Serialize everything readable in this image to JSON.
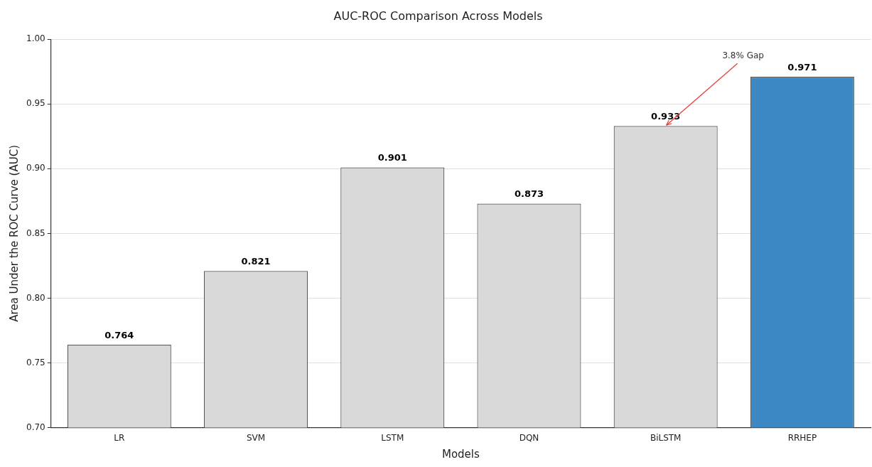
{
  "chart_data": {
    "type": "bar",
    "title": "AUC-ROC Comparison Across Models",
    "xlabel": "Models",
    "ylabel": "Area Under the ROC Curve (AUC)",
    "categories": [
      "LR",
      "SVM",
      "LSTM",
      "DQN",
      "BiLSTM",
      "RRHEP"
    ],
    "values": [
      0.764,
      0.821,
      0.901,
      0.873,
      0.933,
      0.971
    ],
    "colors": [
      "#d9d9d9",
      "#d9d9d9",
      "#d9d9d9",
      "#d9d9d9",
      "#d9d9d9",
      "#3d88c2"
    ],
    "ylim": [
      0.7,
      1.0
    ],
    "yticks": [
      {
        "value": 0.7,
        "label": "0.70"
      },
      {
        "value": 0.75,
        "label": "0.75"
      },
      {
        "value": 0.8,
        "label": "0.80"
      },
      {
        "value": 0.85,
        "label": "0.85"
      },
      {
        "value": 0.9,
        "label": "0.90"
      },
      {
        "value": 0.95,
        "label": "0.95"
      },
      {
        "value": 1.0,
        "label": "1.00"
      }
    ],
    "grid": "y",
    "legend": false,
    "data_labels": true,
    "annotations": [
      {
        "text": "3.8% Gap",
        "x": "BiLSTM",
        "y": 0.933
      }
    ]
  }
}
